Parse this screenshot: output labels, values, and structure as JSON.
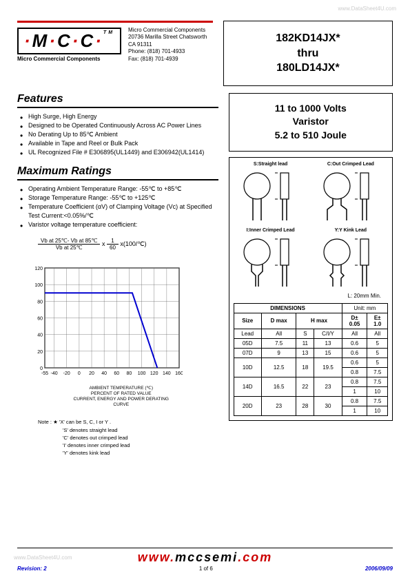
{
  "watermark": "www.DataSheet4U.com",
  "logo": {
    "text": "M C C",
    "tm": "TM",
    "sub": "Micro Commercial Components"
  },
  "address": {
    "name": "Micro Commercial Components",
    "street": "20736 Marilla Street Chatsworth",
    "city": "CA 91311",
    "phone": "Phone: (818) 701-4933",
    "fax": "Fax:      (818) 701-4939"
  },
  "title": {
    "line1": "182KD14JX*",
    "line2": "thru",
    "line3": "180LD14JX*"
  },
  "spec": {
    "line1": "11 to 1000 Volts",
    "line2": "Varistor",
    "line3": "5.2 to 510 Joule"
  },
  "features": {
    "title": "Features",
    "items": [
      "High Surge, High Energy",
      "Designed to be Operated Continuously Across AC Power Lines",
      "No Derating Up to 85℃ Ambient",
      "Available in Tape and Reel or Bulk Pack",
      "UL Recognized File # E306895(UL1449) and E306942(UL1414)"
    ]
  },
  "ratings": {
    "title": "Maximum Ratings",
    "items": [
      "Operating Ambient Temperature Range: -55℃ to +85℃",
      "Storage Temperature Range: -55℃ to +125℃",
      "Temperature Coefficient (αV) of Clamping Voltage (Vc) at Specified Test Current:<0.05%/℃",
      "Varistor voltage temperature coefficient:"
    ],
    "formula": {
      "num": "Vb at 25℃- Vb at 85℃",
      "den": "Vb at 25℃",
      "tail": " x ",
      "frac2num": "1",
      "frac2den": "60",
      "tail2": " x(100/℃)"
    }
  },
  "chart": {
    "ylabels": [
      "120",
      "100",
      "80",
      "60",
      "40",
      "20",
      "0"
    ],
    "xlabels": [
      "-55",
      "-40",
      "-20",
      "0",
      "20",
      "40",
      "60",
      "80",
      "100",
      "120",
      "140",
      "160"
    ],
    "line_color": "#0000d0",
    "grid_color": "#666",
    "caption1": "AMBIENT TEMPERATURE (℃)",
    "caption2": "PERCENT OF RATED VALUE",
    "caption3": "CURRENT, ENERGY AND POWER DERATING",
    "caption4": "CURVE",
    "breakpoints": [
      [
        -55,
        90
      ],
      [
        85,
        90
      ],
      [
        125,
        0
      ]
    ]
  },
  "note": {
    "lead": "Note :",
    "star": "★",
    "lines": [
      "'X' can be S, C, I or Y .",
      "'S' denotes straight lead",
      "'C' denotes out crimped lead",
      "'I' denotes inner crimped lead",
      "'Y' denotes kink  lead"
    ]
  },
  "packages": {
    "labels": [
      "S:Straight lead",
      "C:Out Crimped Lead",
      "I:Inner Crimped Lead",
      "Y:Y Kink Lead"
    ],
    "l_note": "L: 20mm Min."
  },
  "dims": {
    "title": "DIMENSIONS",
    "unit": "Unit: mm",
    "cols": [
      "Size",
      "D max",
      "H max",
      "",
      "D± 0.05",
      "E± 1.0"
    ],
    "lead_row": [
      "Lead",
      "All",
      "S",
      "C/I/Y",
      "All",
      "All"
    ],
    "rows": [
      [
        "05D",
        "7.5",
        "11",
        "13",
        "0.6",
        "5"
      ],
      [
        "07D",
        "9",
        "13",
        "15",
        "0.6",
        "5"
      ],
      [
        "10D_a",
        "12.5",
        "18",
        "19.5",
        "0.6",
        "5"
      ],
      [
        "10D_b",
        "",
        "",
        "",
        "0.8",
        "7.5"
      ],
      [
        "14D_a",
        "16.5",
        "22",
        "23",
        "0.8",
        "7.5"
      ],
      [
        "14D_b",
        "",
        "",
        "",
        "1",
        "10"
      ],
      [
        "20D_a",
        "23",
        "28",
        "30",
        "0.8",
        "7.5"
      ],
      [
        "20D_b",
        "",
        "",
        "",
        "1",
        "10"
      ]
    ]
  },
  "footer": {
    "url_pre": "www.",
    "url_main": "mccsemi",
    "url_post": ".com",
    "revision": "Revision: 2",
    "page": "1 of 6",
    "date": "2006/09/09"
  }
}
